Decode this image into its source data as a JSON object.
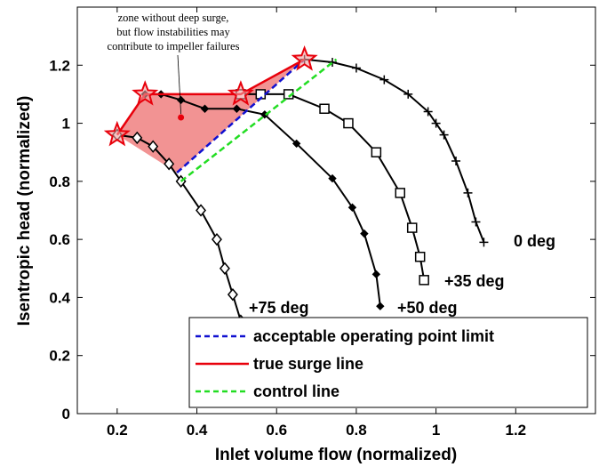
{
  "chart_data": {
    "type": "line",
    "xlabel": "Inlet volume flow (normalized)",
    "ylabel": "Isentropic head (normalized)",
    "xlim": [
      0.1,
      1.4
    ],
    "ylim": [
      0,
      1.4
    ],
    "xticks": [
      "0.2",
      "0.4",
      "0.6",
      "0.8",
      "1",
      "1.2"
    ],
    "yticks": [
      "0",
      "0.2",
      "0.4",
      "0.6",
      "0.8",
      "1",
      "1.2"
    ],
    "grid": false,
    "legend_position": "bottom-right",
    "series": [
      {
        "name": "0 deg",
        "marker": "plus",
        "color": "#000000",
        "x": [
          0.67,
          0.74,
          0.8,
          0.87,
          0.93,
          0.98,
          1.0,
          1.02,
          1.05,
          1.08,
          1.1,
          1.12
        ],
        "y": [
          1.22,
          1.21,
          1.19,
          1.15,
          1.1,
          1.04,
          1.0,
          0.96,
          0.87,
          0.76,
          0.66,
          0.59
        ]
      },
      {
        "name": "+35 deg",
        "marker": "square",
        "color": "#000000",
        "x": [
          0.51,
          0.56,
          0.63,
          0.72,
          0.78,
          0.85,
          0.91,
          0.94,
          0.96,
          0.97
        ],
        "y": [
          1.1,
          1.1,
          1.1,
          1.05,
          1.0,
          0.9,
          0.76,
          0.64,
          0.54,
          0.46
        ]
      },
      {
        "name": "+50 deg",
        "marker": "diamond",
        "color": "#000000",
        "x": [
          0.27,
          0.31,
          0.36,
          0.42,
          0.5,
          0.57,
          0.65,
          0.74,
          0.79,
          0.82,
          0.85,
          0.86
        ],
        "y": [
          1.1,
          1.1,
          1.08,
          1.05,
          1.05,
          1.03,
          0.93,
          0.81,
          0.71,
          0.62,
          0.48,
          0.37
        ]
      },
      {
        "name": "+75 deg",
        "marker": "diamond-open",
        "color": "#000000",
        "x": [
          0.2,
          0.25,
          0.29,
          0.33,
          0.36,
          0.41,
          0.45,
          0.47,
          0.49,
          0.51
        ],
        "y": [
          0.96,
          0.95,
          0.92,
          0.86,
          0.8,
          0.7,
          0.6,
          0.5,
          0.41,
          0.32
        ]
      }
    ],
    "curve_labels": [
      "0 deg",
      "+35 deg",
      "+50 deg",
      "+75 deg"
    ],
    "surge_region": {
      "x": [
        0.2,
        0.27,
        0.51,
        0.67,
        0.35
      ],
      "y": [
        0.96,
        1.1,
        1.1,
        1.22,
        0.83
      ]
    },
    "true_surge_line": {
      "name": "true surge line",
      "color": "#e8000b",
      "x": [
        0.2,
        0.27,
        0.51,
        0.67
      ],
      "y": [
        0.96,
        1.1,
        1.1,
        1.22
      ],
      "stars": true
    },
    "acceptable_limit": {
      "name": "acceptable operating point limit",
      "color": "#1010d0",
      "x": [
        0.35,
        0.67
      ],
      "y": [
        0.83,
        1.22
      ]
    },
    "control_line": {
      "name": "control line",
      "color": "#22dd22",
      "x": [
        0.36,
        0.75
      ],
      "y": [
        0.8,
        1.22
      ]
    },
    "annotation": {
      "lines": [
        "zone without deep surge,",
        "but flow instabilities may",
        "contribute to impeller failures"
      ],
      "point": [
        0.36,
        1.02
      ]
    },
    "legend": [
      {
        "label": "acceptable operating point limit",
        "style": "dashed",
        "color": "#1010d0"
      },
      {
        "label": "true surge line",
        "style": "solid",
        "color": "#e8000b"
      },
      {
        "label": "control line",
        "style": "dashed",
        "color": "#22dd22"
      }
    ]
  }
}
